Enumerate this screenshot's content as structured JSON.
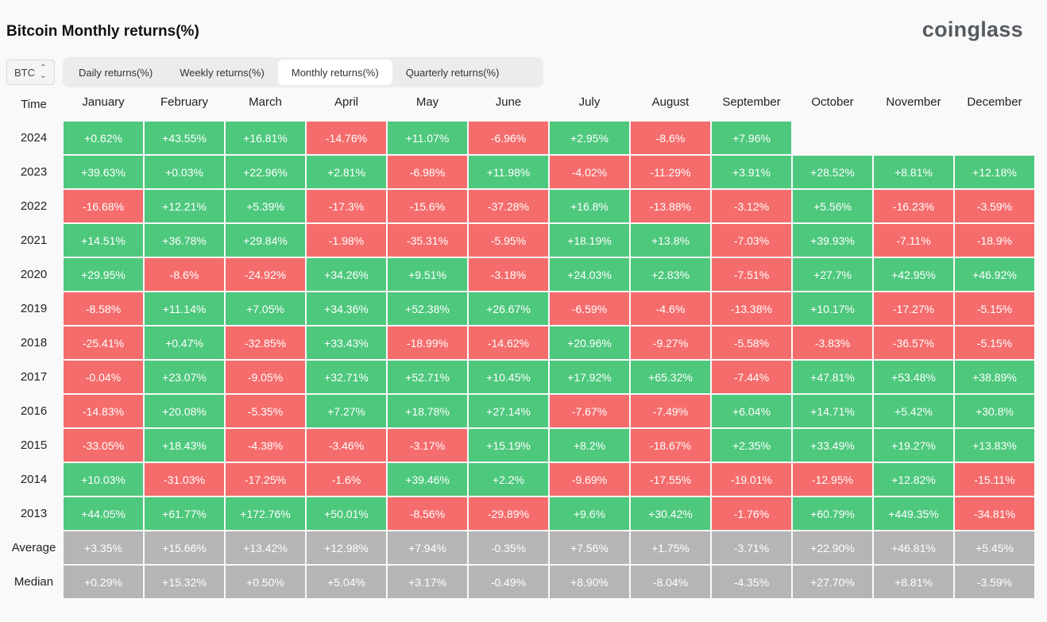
{
  "page": {
    "title": "Bitcoin Monthly returns(%)",
    "logo": "coinglass"
  },
  "colors": {
    "positive": "#4ec87d",
    "negative": "#f56c6c",
    "stat": "#b5b5b5"
  },
  "selector": {
    "value": "BTC",
    "icon": "chevron-up-down-icon"
  },
  "tabs": [
    {
      "label": "Daily returns(%)",
      "active": false
    },
    {
      "label": "Weekly returns(%)",
      "active": false
    },
    {
      "label": "Monthly returns(%)",
      "active": true
    },
    {
      "label": "Quarterly returns(%)",
      "active": false
    }
  ],
  "table": {
    "corner": "Time",
    "months": [
      "January",
      "February",
      "March",
      "April",
      "May",
      "June",
      "July",
      "August",
      "September",
      "October",
      "November",
      "December"
    ],
    "rows": [
      {
        "label": "2024",
        "type": "year",
        "values": [
          "+0.62%",
          "+43.55%",
          "+16.81%",
          "-14.76%",
          "+11.07%",
          "-6.96%",
          "+2.95%",
          "-8.6%",
          "+7.96%",
          "",
          "",
          ""
        ]
      },
      {
        "label": "2023",
        "type": "year",
        "values": [
          "+39.63%",
          "+0.03%",
          "+22.96%",
          "+2.81%",
          "-6.98%",
          "+11.98%",
          "-4.02%",
          "-11.29%",
          "+3.91%",
          "+28.52%",
          "+8.81%",
          "+12.18%"
        ]
      },
      {
        "label": "2022",
        "type": "year",
        "values": [
          "-16.68%",
          "+12.21%",
          "+5.39%",
          "-17.3%",
          "-15.6%",
          "-37.28%",
          "+16.8%",
          "-13.88%",
          "-3.12%",
          "+5.56%",
          "-16.23%",
          "-3.59%"
        ]
      },
      {
        "label": "2021",
        "type": "year",
        "values": [
          "+14.51%",
          "+36.78%",
          "+29.84%",
          "-1.98%",
          "-35.31%",
          "-5.95%",
          "+18.19%",
          "+13.8%",
          "-7.03%",
          "+39.93%",
          "-7.11%",
          "-18.9%"
        ]
      },
      {
        "label": "2020",
        "type": "year",
        "values": [
          "+29.95%",
          "-8.6%",
          "-24.92%",
          "+34.26%",
          "+9.51%",
          "-3.18%",
          "+24.03%",
          "+2.83%",
          "-7.51%",
          "+27.7%",
          "+42.95%",
          "+46.92%"
        ]
      },
      {
        "label": "2019",
        "type": "year",
        "values": [
          "-8.58%",
          "+11.14%",
          "+7.05%",
          "+34.36%",
          "+52.38%",
          "+26.67%",
          "-6.59%",
          "-4.6%",
          "-13.38%",
          "+10.17%",
          "-17.27%",
          "-5.15%"
        ]
      },
      {
        "label": "2018",
        "type": "year",
        "values": [
          "-25.41%",
          "+0.47%",
          "-32.85%",
          "+33.43%",
          "-18.99%",
          "-14.62%",
          "+20.96%",
          "-9.27%",
          "-5.58%",
          "-3.83%",
          "-36.57%",
          "-5.15%"
        ]
      },
      {
        "label": "2017",
        "type": "year",
        "values": [
          "-0.04%",
          "+23.07%",
          "-9.05%",
          "+32.71%",
          "+52.71%",
          "+10.45%",
          "+17.92%",
          "+65.32%",
          "-7.44%",
          "+47.81%",
          "+53.48%",
          "+38.89%"
        ]
      },
      {
        "label": "2016",
        "type": "year",
        "values": [
          "-14.83%",
          "+20.08%",
          "-5.35%",
          "+7.27%",
          "+18.78%",
          "+27.14%",
          "-7.67%",
          "-7.49%",
          "+6.04%",
          "+14.71%",
          "+5.42%",
          "+30.8%"
        ]
      },
      {
        "label": "2015",
        "type": "year",
        "values": [
          "-33.05%",
          "+18.43%",
          "-4.38%",
          "-3.46%",
          "-3.17%",
          "+15.19%",
          "+8.2%",
          "-18.67%",
          "+2.35%",
          "+33.49%",
          "+19.27%",
          "+13.83%"
        ]
      },
      {
        "label": "2014",
        "type": "year",
        "values": [
          "+10.03%",
          "-31.03%",
          "-17.25%",
          "-1.6%",
          "+39.46%",
          "+2.2%",
          "-9.69%",
          "-17.55%",
          "-19.01%",
          "-12.95%",
          "+12.82%",
          "-15.11%"
        ]
      },
      {
        "label": "2013",
        "type": "year",
        "values": [
          "+44.05%",
          "+61.77%",
          "+172.76%",
          "+50.01%",
          "-8.56%",
          "-29.89%",
          "+9.6%",
          "+30.42%",
          "-1.76%",
          "+60.79%",
          "+449.35%",
          "-34.81%"
        ]
      },
      {
        "label": "Average",
        "type": "stat",
        "values": [
          "+3.35%",
          "+15.66%",
          "+13.42%",
          "+12.98%",
          "+7.94%",
          "-0.35%",
          "+7.56%",
          "+1.75%",
          "-3.71%",
          "+22.90%",
          "+46.81%",
          "+5.45%"
        ]
      },
      {
        "label": "Median",
        "type": "stat",
        "values": [
          "+0.29%",
          "+15.32%",
          "+0.50%",
          "+5.04%",
          "+3.17%",
          "-0.49%",
          "+8.90%",
          "-8.04%",
          "-4.35%",
          "+27.70%",
          "+8.81%",
          "-3.59%"
        ]
      }
    ]
  }
}
